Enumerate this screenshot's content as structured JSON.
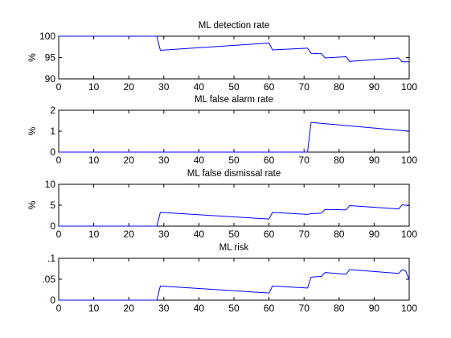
{
  "chart_data": [
    {
      "type": "line",
      "title": "ML detection rate",
      "xlabel": "",
      "ylabel": "%",
      "xlim": [
        0,
        100
      ],
      "ylim": [
        90,
        100
      ],
      "xticks": [
        0,
        10,
        20,
        30,
        40,
        50,
        60,
        70,
        80,
        90,
        100
      ],
      "yticks": [
        90,
        95,
        100
      ],
      "grid": false,
      "color": "#0000ff",
      "series": [
        {
          "x": [
            0,
            28,
            29,
            60,
            61,
            71,
            72,
            75,
            76,
            82,
            83,
            97,
            98,
            100
          ],
          "y": [
            100,
            100,
            96.7,
            98.4,
            96.8,
            97.2,
            96.0,
            95.9,
            94.9,
            95.2,
            94.1,
            94.9,
            94.0,
            94.0
          ]
        }
      ]
    },
    {
      "type": "line",
      "title": "ML false alarm rate",
      "xlabel": "",
      "ylabel": "%",
      "xlim": [
        0,
        100
      ],
      "ylim": [
        0,
        2
      ],
      "xticks": [
        0,
        10,
        20,
        30,
        40,
        50,
        60,
        70,
        80,
        90,
        100
      ],
      "yticks": [
        0,
        1,
        2
      ],
      "grid": false,
      "color": "#0000ff",
      "series": [
        {
          "x": [
            0,
            71,
            72,
            100
          ],
          "y": [
            0,
            0,
            1.42,
            1.0
          ]
        }
      ]
    },
    {
      "type": "line",
      "title": "ML false dismissal rate",
      "xlabel": "",
      "ylabel": "%",
      "xlim": [
        0,
        100
      ],
      "ylim": [
        0,
        10
      ],
      "xticks": [
        0,
        10,
        20,
        30,
        40,
        50,
        60,
        70,
        80,
        90,
        100
      ],
      "yticks": [
        0,
        5,
        10
      ],
      "grid": false,
      "color": "#0000ff",
      "series": [
        {
          "x": [
            0,
            28,
            29,
            60,
            61,
            71,
            72,
            75,
            76,
            82,
            83,
            97,
            98,
            99,
            100
          ],
          "y": [
            0,
            0,
            3.3,
            1.7,
            3.3,
            2.8,
            3.0,
            3.1,
            4.0,
            3.9,
            4.9,
            4.1,
            5.1,
            5.0,
            4.9
          ]
        }
      ]
    },
    {
      "type": "line",
      "title": "ML risk",
      "xlabel": "",
      "ylabel": "",
      "xlim": [
        0,
        100
      ],
      "ylim": [
        0,
        0.1
      ],
      "xticks": [
        0,
        10,
        20,
        30,
        40,
        50,
        60,
        70,
        80,
        90,
        100
      ],
      "yticks": [
        0,
        0.05,
        0.1
      ],
      "grid": false,
      "color": "#0000ff",
      "series": [
        {
          "x": [
            0,
            28,
            29,
            60,
            61,
            71,
            72,
            75,
            76,
            82,
            83,
            97,
            98,
            99,
            100
          ],
          "y": [
            0,
            0,
            0.034,
            0.017,
            0.034,
            0.029,
            0.055,
            0.057,
            0.066,
            0.062,
            0.073,
            0.064,
            0.073,
            0.07,
            0.049
          ]
        }
      ]
    }
  ]
}
